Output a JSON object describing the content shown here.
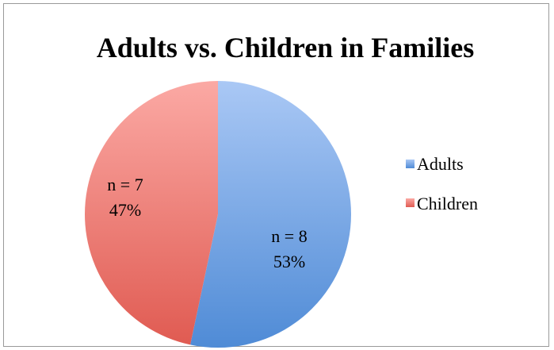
{
  "chart_data": {
    "type": "pie",
    "title": "Adults vs. Children in Families",
    "slices": [
      {
        "name": "Adults",
        "value": 8,
        "n_label": "n = 8",
        "pct_label": "53%",
        "color": "#6fa0e0"
      },
      {
        "name": "Children",
        "value": 7,
        "n_label": "n = 7",
        "pct_label": "47%",
        "color": "#e8706a"
      }
    ],
    "legend_placement": "right",
    "colors": {
      "adults_light": "#aac8f5",
      "adults_dark": "#4f8bd6",
      "children_light": "#fba9a4",
      "children_dark": "#e05b52"
    }
  }
}
